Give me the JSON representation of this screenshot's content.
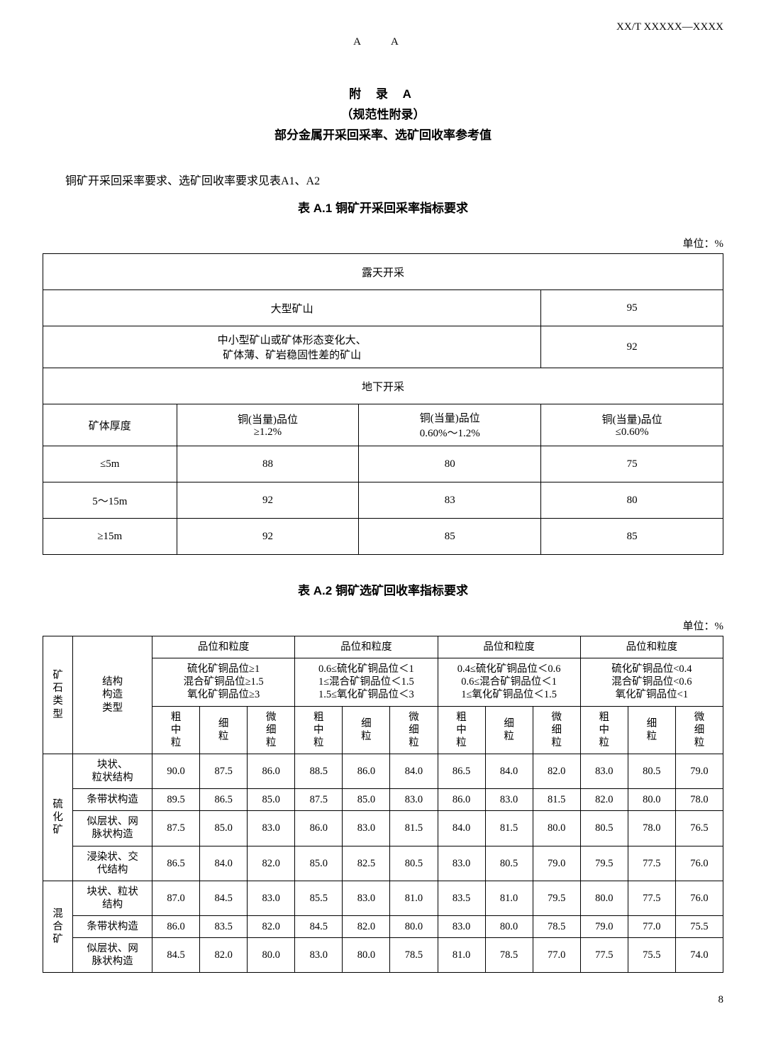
{
  "header": {
    "doc_code": "XX/T XXXXX—XXXX",
    "aa": "A A"
  },
  "appendix": {
    "title": "附 录 A",
    "subtitle": "（规范性附录）",
    "name": "部分金属开采回采率、选矿回收率参考值"
  },
  "intro": "铜矿开采回采率要求、选矿回收率要求见表A1、A2",
  "table1": {
    "caption": "表 A.1  铜矿开采回采率指标要求",
    "unit": "单位：%",
    "open_pit_header": "露天开采",
    "rows_open": [
      {
        "label": "大型矿山",
        "value": "95"
      },
      {
        "label_l1": "中小型矿山或矿体形态变化大、",
        "label_l2": "矿体薄、矿岩稳固性差的矿山",
        "value": "92"
      }
    ],
    "underground_header": "地下开采",
    "ug_cols": {
      "c0": "矿体厚度",
      "c1_l1": "铜(当量)品位",
      "c1_l2": "≥1.2%",
      "c2_l1": "铜(当量)品位",
      "c2_l2": "0.60%～1.2%",
      "c3_l1": "铜(当量)品位",
      "c3_l2": "≤0.60%"
    },
    "ug_rows": [
      {
        "c0": "≤5m",
        "c1": "88",
        "c2": "80",
        "c3": "75"
      },
      {
        "c0": "5～15m",
        "c1": "92",
        "c2": "83",
        "c3": "80"
      },
      {
        "c0": "≥15m",
        "c1": "92",
        "c2": "85",
        "c3": "85"
      }
    ]
  },
  "table2": {
    "caption": "表 A.2  铜矿选矿回收率指标要求",
    "unit": "单位：%",
    "head": {
      "col_type_l1": "矿",
      "col_type_l2": "石",
      "col_type_l3": "类",
      "col_type_l4": "型",
      "col_struct_l1": "结构",
      "col_struct_l2": "构造",
      "col_struct_l3": "类型",
      "grade_label": "品位和粒度",
      "g1_l1": "硫化矿铜品位≥1",
      "g1_l2": "混合矿铜品位≥1.5",
      "g1_l3": "氧化矿铜品位≥3",
      "g2_l1": "0.6≤硫化矿铜品位＜1",
      "g2_l2": "1≤混合矿铜品位＜1.5",
      "g2_l3": "1.5≤氧化矿铜品位＜3",
      "g3_l1": "0.4≤硫化矿铜品位＜0.6",
      "g3_l2": "0.6≤混合矿铜品位＜1",
      "g3_l3": "1≤氧化矿铜品位＜1.5",
      "g4_l1": "硫化矿铜品位<0.4",
      "g4_l2": "混合矿铜品位<0.6",
      "g4_l3": "氧化矿铜品位<1",
      "grain_cz": "粗\n中\n粒",
      "grain_x": "细\n粒",
      "grain_wx": "微\n细\n粒"
    },
    "groups": [
      {
        "type": "硫\n化\n矿",
        "rows": [
          {
            "s": "块状、\n粒状结构",
            "v": [
              "90.0",
              "87.5",
              "86.0",
              "88.5",
              "86.0",
              "84.0",
              "86.5",
              "84.0",
              "82.0",
              "83.0",
              "80.5",
              "79.0"
            ]
          },
          {
            "s": "条带状构造",
            "v": [
              "89.5",
              "86.5",
              "85.0",
              "87.5",
              "85.0",
              "83.0",
              "86.0",
              "83.0",
              "81.5",
              "82.0",
              "80.0",
              "78.0"
            ]
          },
          {
            "s": "似层状、网\n脉状构造",
            "v": [
              "87.5",
              "85.0",
              "83.0",
              "86.0",
              "83.0",
              "81.5",
              "84.0",
              "81.5",
              "80.0",
              "80.5",
              "78.0",
              "76.5"
            ]
          },
          {
            "s": "浸染状、交\n代结构",
            "v": [
              "86.5",
              "84.0",
              "82.0",
              "85.0",
              "82.5",
              "80.5",
              "83.0",
              "80.5",
              "79.0",
              "79.5",
              "77.5",
              "76.0"
            ]
          }
        ]
      },
      {
        "type": "混\n合\n矿",
        "rows": [
          {
            "s": "块状、粒状\n结构",
            "v": [
              "87.0",
              "84.5",
              "83.0",
              "85.5",
              "83.0",
              "81.0",
              "83.5",
              "81.0",
              "79.5",
              "80.0",
              "77.5",
              "76.0"
            ]
          },
          {
            "s": "条带状构造",
            "v": [
              "86.0",
              "83.5",
              "82.0",
              "84.5",
              "82.0",
              "80.0",
              "83.0",
              "80.0",
              "78.5",
              "79.0",
              "77.0",
              "75.5"
            ]
          },
          {
            "s": "似层状、网\n脉状构造",
            "v": [
              "84.5",
              "82.0",
              "80.0",
              "83.0",
              "80.0",
              "78.5",
              "81.0",
              "78.5",
              "77.0",
              "77.5",
              "75.5",
              "74.0"
            ]
          }
        ]
      }
    ]
  },
  "page_number": "8"
}
